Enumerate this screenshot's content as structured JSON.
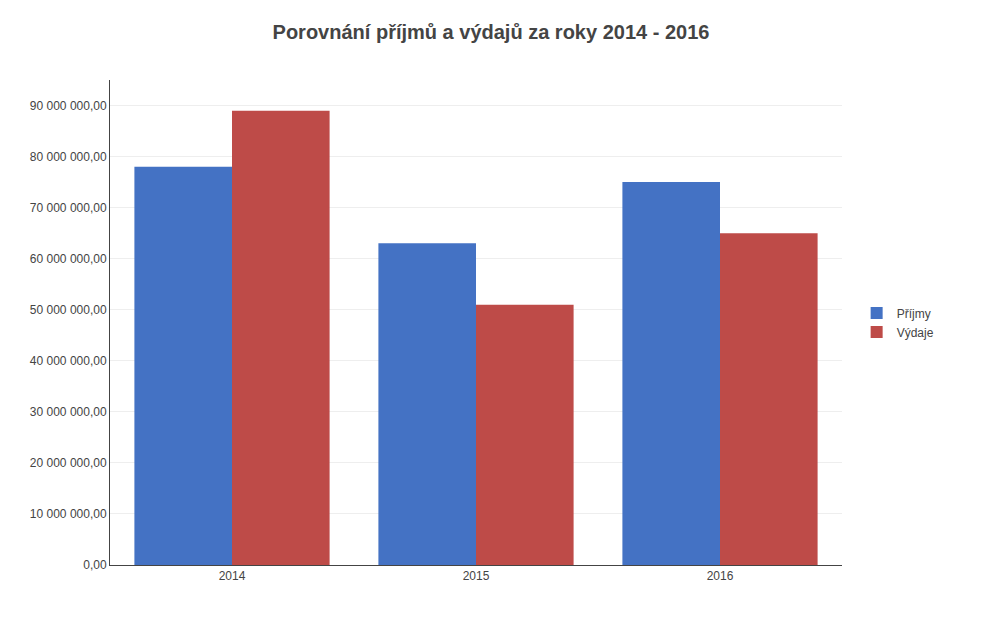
{
  "chart_data": {
    "type": "bar",
    "title": "Porovnání příjmů a výdajů za roky 2014 - 2016",
    "categories": [
      "2014",
      "2015",
      "2016"
    ],
    "series": [
      {
        "name": "Příjmy",
        "color": "#4472C4",
        "values": [
          78000000,
          63000000,
          75000000
        ]
      },
      {
        "name": "Výdaje",
        "color": "#BE4B48",
        "values": [
          89000000,
          51000000,
          65000000
        ]
      }
    ],
    "ylim": [
      0,
      95000000
    ],
    "yticks": [
      {
        "value": 0,
        "label": "0,00"
      },
      {
        "value": 10000000,
        "label": "10 000 000,00"
      },
      {
        "value": 20000000,
        "label": "20 000 000,00"
      },
      {
        "value": 30000000,
        "label": "30 000 000,00"
      },
      {
        "value": 40000000,
        "label": "40 000 000,00"
      },
      {
        "value": 50000000,
        "label": "50 000 000,00"
      },
      {
        "value": 60000000,
        "label": "60 000 000,00"
      },
      {
        "value": 70000000,
        "label": "70 000 000,00"
      },
      {
        "value": 80000000,
        "label": "80 000 000,00"
      },
      {
        "value": 90000000,
        "label": "90 000 000,00"
      }
    ],
    "grid": true,
    "legend": "right"
  }
}
